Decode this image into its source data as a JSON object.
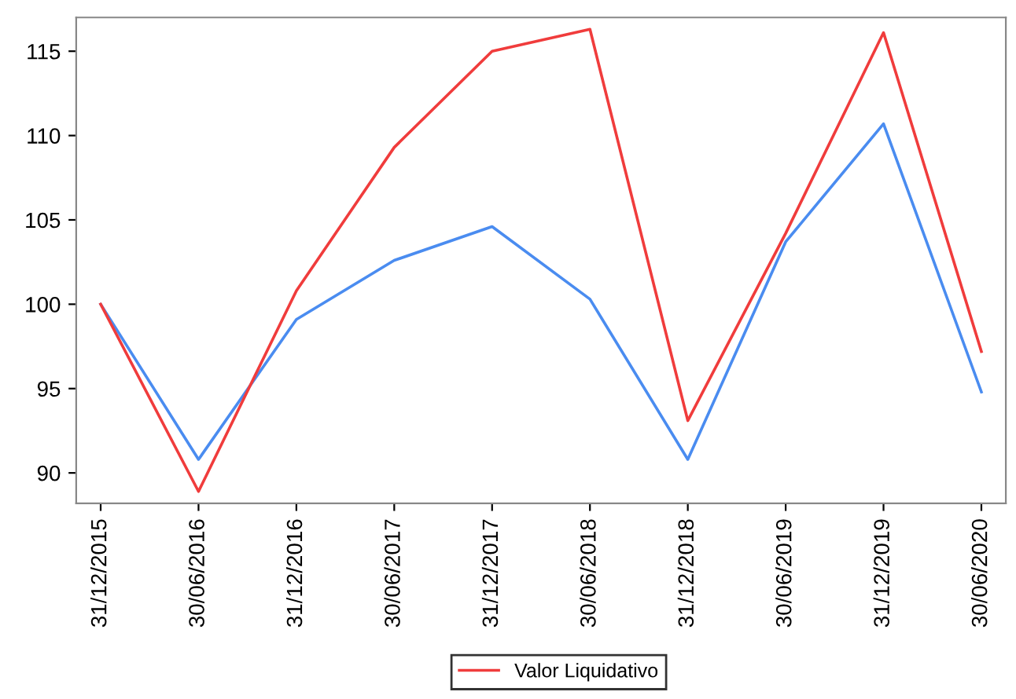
{
  "chart_data": {
    "type": "line",
    "categories": [
      "31/12/2015",
      "30/06/2016",
      "31/12/2016",
      "30/06/2017",
      "31/12/2017",
      "30/06/2018",
      "31/12/2018",
      "30/06/2019",
      "31/12/2019",
      "30/06/2020"
    ],
    "series": [
      {
        "color": "#4a8cf0",
        "values": [
          100,
          90.8,
          99.1,
          102.6,
          104.6,
          100.3,
          90.8,
          103.7,
          110.7,
          94.8
        ]
      },
      {
        "name": "Valor Liquidativo",
        "color": "#f03c3c",
        "values": [
          100,
          88.9,
          100.8,
          109.3,
          115.0,
          116.3,
          93.1,
          104.2,
          116.1,
          97.2
        ]
      }
    ],
    "ylim": [
      88.2,
      117.0
    ],
    "yticks": [
      90,
      95,
      100,
      105,
      110,
      115
    ],
    "grid": false,
    "legend": "bottom",
    "marker": "none",
    "line_style": "solid"
  }
}
